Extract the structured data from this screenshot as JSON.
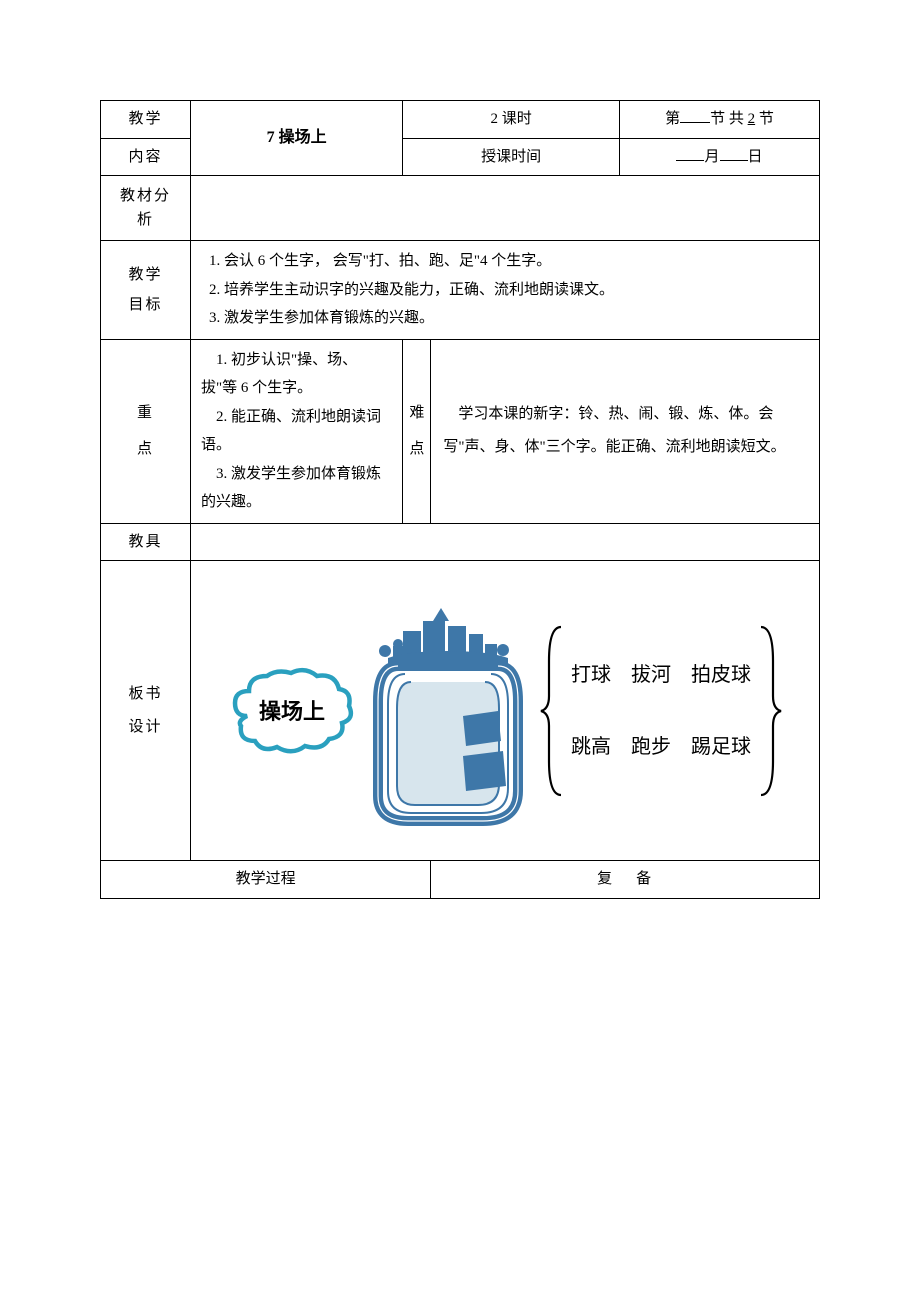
{
  "header": {
    "row1_label": "教学",
    "row2_label": "内容",
    "title": "7 操场上",
    "keshi": "2 课时",
    "jie_prefix": "第",
    "jie_mid": "节 共",
    "total_jie": "2",
    "jie_suffix": "节",
    "time_label": "授课时间",
    "month_suffix": "月",
    "day_suffix": "日"
  },
  "analysis": {
    "label": "教材分析"
  },
  "objectives": {
    "label": "教学目标",
    "line1": "1. 会认 6 个生字，  会写\"打、拍、跑、足\"4 个生字。",
    "line2": "2. 培养学生主动识字的兴趣及能力，正确、流利地朗读课文。",
    "line3": "3. 激发学生参加体育锻炼的兴趣。"
  },
  "key": {
    "label": "重点",
    "line1": "    1. 初步认识\"操、场、拔\"等 6 个生字。",
    "line2": "    2. 能正确、流利地朗读词语。",
    "line3": "    3. 激发学生参加体育锻炼的兴趣。"
  },
  "difficulty": {
    "label": "难点",
    "text": "    学习本课的新字：铃、热、闹、锻、炼、体。会写\"声、身、体\"三个字。能正确、流利地朗读短文。"
  },
  "tools": {
    "label": "教具"
  },
  "board": {
    "label": "板书设计",
    "cloud_text": "操场上",
    "row1": {
      "a": "打球",
      "b": "拔河",
      "c": "拍皮球"
    },
    "row2": {
      "a": "跳高",
      "b": "跑步",
      "c": "踢足球"
    }
  },
  "process": {
    "label": "教学过程",
    "fubei": "复备"
  },
  "colors": {
    "cloud_stroke": "#2aa0bf",
    "stadium_blue": "#3e77a8",
    "stadium_fill": "#d7e5ed",
    "brace": "#000000"
  }
}
